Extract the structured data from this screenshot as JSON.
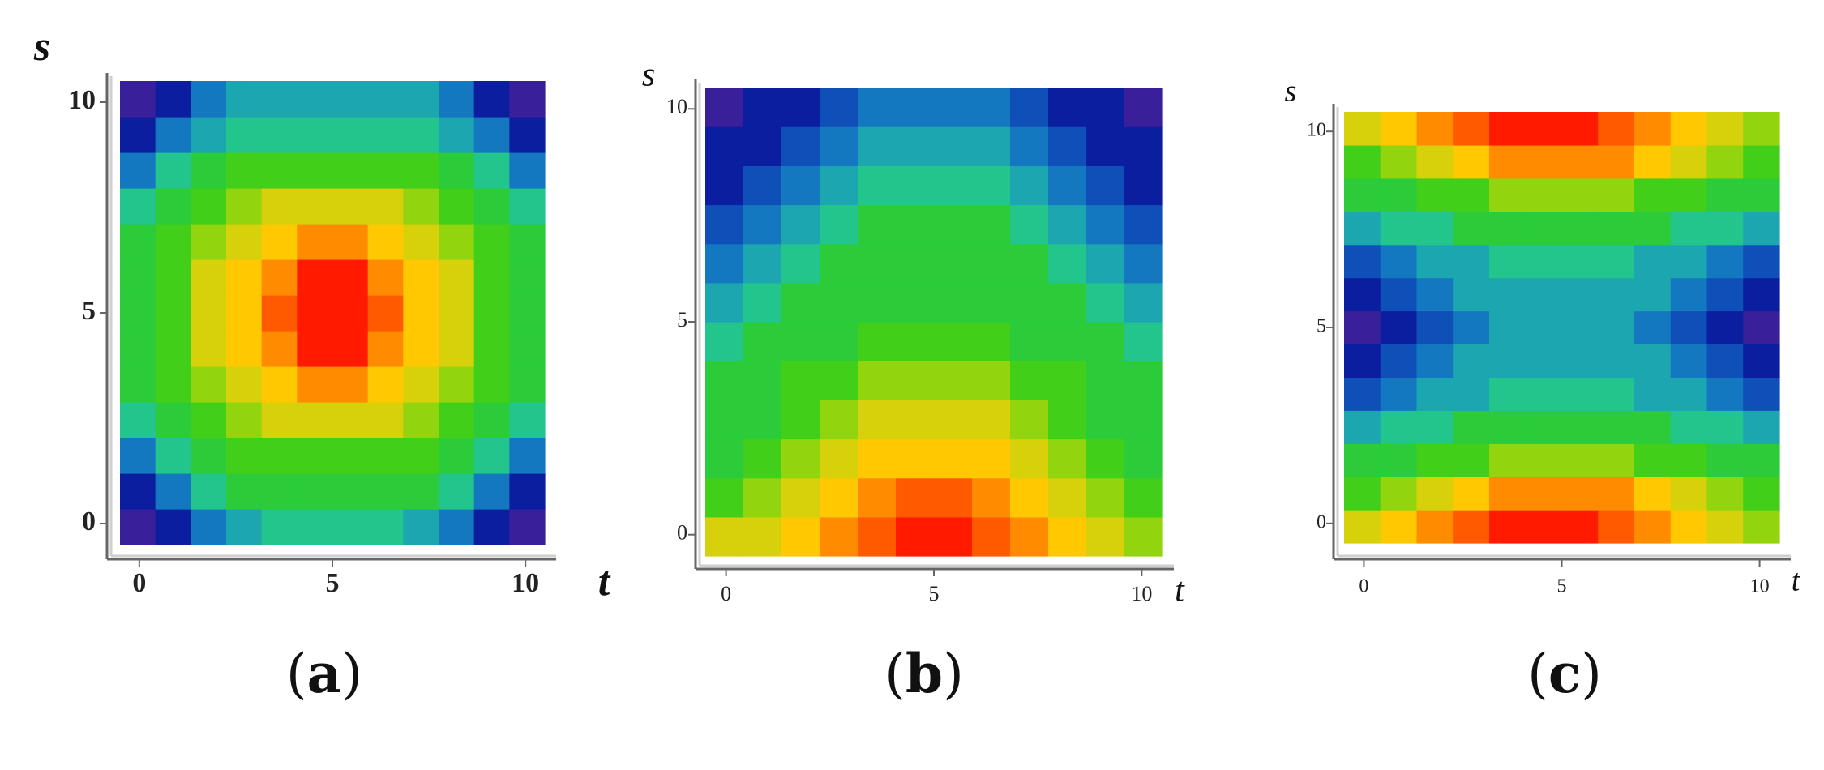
{
  "chart_data": [
    {
      "type": "heatmap",
      "panel_label": "a",
      "xlabel": "t",
      "ylabel": "s",
      "xticks": [
        "0",
        "5",
        "10"
      ],
      "yticks": [
        "0",
        "5",
        "10"
      ],
      "xlim": [
        -0.5,
        10.5
      ],
      "ylim": [
        -0.5,
        10.5
      ],
      "colormap": [
        "#3a1f9a",
        "#0b1ea0",
        "#0f4fb8",
        "#1478c0",
        "#1ca6b0",
        "#22c58c",
        "#2bcb3a",
        "#42cf1a",
        "#92d40e",
        "#d6d10a",
        "#ffc800",
        "#ff8c00",
        "#ff5a00",
        "#ff1a00"
      ],
      "levels": [
        [
          0,
          1,
          3,
          4,
          5,
          5,
          5,
          5,
          4,
          3,
          1,
          0
        ],
        [
          1,
          3,
          5,
          6,
          6,
          6,
          6,
          6,
          6,
          5,
          3,
          1
        ],
        [
          3,
          5,
          6,
          7,
          7,
          7,
          7,
          7,
          7,
          6,
          5,
          3
        ],
        [
          5,
          6,
          7,
          8,
          9,
          9,
          9,
          9,
          8,
          7,
          6,
          5
        ],
        [
          6,
          7,
          8,
          9,
          10,
          11,
          11,
          10,
          9,
          8,
          7,
          6
        ],
        [
          6,
          7,
          9,
          10,
          11,
          13,
          13,
          11,
          10,
          9,
          7,
          6
        ],
        [
          6,
          7,
          9,
          10,
          12,
          13,
          13,
          12,
          10,
          9,
          7,
          6
        ],
        [
          6,
          7,
          9,
          10,
          11,
          13,
          13,
          11,
          10,
          9,
          7,
          6
        ],
        [
          6,
          7,
          8,
          9,
          10,
          11,
          11,
          10,
          9,
          8,
          7,
          6
        ],
        [
          5,
          6,
          7,
          8,
          9,
          9,
          9,
          9,
          8,
          7,
          6,
          5
        ],
        [
          3,
          5,
          6,
          7,
          7,
          7,
          7,
          7,
          7,
          6,
          5,
          3
        ],
        [
          1,
          3,
          4,
          5,
          5,
          5,
          5,
          5,
          5,
          4,
          3,
          1
        ],
        [
          0,
          1,
          3,
          4,
          4,
          4,
          4,
          4,
          4,
          3,
          1,
          0
        ]
      ]
    },
    {
      "type": "heatmap",
      "panel_label": "b",
      "xlabel": "t",
      "ylabel": "s",
      "xticks": [
        "0",
        "5",
        "10"
      ],
      "yticks": [
        "0",
        "5",
        "10"
      ],
      "xlim": [
        -0.5,
        10.5
      ],
      "ylim": [
        -0.5,
        10.5
      ],
      "colormap": [
        "#3a1f9a",
        "#0b1ea0",
        "#0f4fb8",
        "#1478c0",
        "#1ca6b0",
        "#22c58c",
        "#2bcb3a",
        "#42cf1a",
        "#92d40e",
        "#d6d10a",
        "#ffc800",
        "#ff8c00",
        "#ff5a00",
        "#ff1a00"
      ],
      "levels": [
        [
          9,
          9,
          10,
          11,
          12,
          13,
          13,
          12,
          11,
          10,
          9,
          8
        ],
        [
          7,
          8,
          9,
          10,
          11,
          12,
          12,
          11,
          10,
          9,
          8,
          7
        ],
        [
          6,
          7,
          8,
          9,
          10,
          10,
          10,
          10,
          9,
          8,
          7,
          6
        ],
        [
          6,
          6,
          7,
          8,
          9,
          9,
          9,
          9,
          8,
          7,
          6,
          6
        ],
        [
          6,
          6,
          7,
          7,
          8,
          8,
          8,
          8,
          7,
          7,
          6,
          6
        ],
        [
          5,
          6,
          6,
          6,
          7,
          7,
          7,
          7,
          6,
          6,
          6,
          5
        ],
        [
          4,
          5,
          6,
          6,
          6,
          6,
          6,
          6,
          6,
          6,
          5,
          4
        ],
        [
          3,
          4,
          5,
          6,
          6,
          6,
          6,
          6,
          6,
          5,
          4,
          3
        ],
        [
          2,
          3,
          4,
          5,
          6,
          6,
          6,
          6,
          5,
          4,
          3,
          2
        ],
        [
          1,
          2,
          3,
          4,
          5,
          5,
          5,
          5,
          4,
          3,
          2,
          1
        ],
        [
          1,
          1,
          2,
          3,
          4,
          4,
          4,
          4,
          3,
          2,
          1,
          1
        ],
        [
          0,
          1,
          1,
          2,
          3,
          3,
          3,
          3,
          2,
          1,
          1,
          0
        ]
      ]
    },
    {
      "type": "heatmap",
      "panel_label": "c",
      "xlabel": "t",
      "ylabel": "s",
      "xticks": [
        "0",
        "5",
        "10"
      ],
      "yticks": [
        "0",
        "5",
        "10"
      ],
      "xlim": [
        -0.5,
        10.5
      ],
      "ylim": [
        -0.5,
        10.5
      ],
      "colormap": [
        "#3a1f9a",
        "#0b1ea0",
        "#0f4fb8",
        "#1478c0",
        "#1ca6b0",
        "#22c58c",
        "#2bcb3a",
        "#42cf1a",
        "#92d40e",
        "#d6d10a",
        "#ffc800",
        "#ff8c00",
        "#ff5a00",
        "#ff1a00"
      ],
      "levels": [
        [
          9,
          10,
          11,
          12,
          13,
          13,
          13,
          12,
          11,
          10,
          9,
          8
        ],
        [
          7,
          8,
          9,
          10,
          11,
          11,
          11,
          11,
          10,
          9,
          8,
          7
        ],
        [
          6,
          6,
          7,
          7,
          8,
          8,
          8,
          8,
          7,
          7,
          6,
          6
        ],
        [
          4,
          5,
          5,
          6,
          6,
          6,
          6,
          6,
          6,
          5,
          5,
          4
        ],
        [
          2,
          3,
          4,
          4,
          5,
          5,
          5,
          5,
          4,
          4,
          3,
          2
        ],
        [
          1,
          2,
          3,
          4,
          4,
          4,
          4,
          4,
          4,
          3,
          2,
          1
        ],
        [
          0,
          1,
          2,
          3,
          4,
          4,
          4,
          4,
          3,
          2,
          1,
          0
        ],
        [
          1,
          2,
          3,
          4,
          4,
          4,
          4,
          4,
          4,
          3,
          2,
          1
        ],
        [
          2,
          3,
          4,
          4,
          5,
          5,
          5,
          5,
          4,
          4,
          3,
          2
        ],
        [
          4,
          5,
          5,
          6,
          6,
          6,
          6,
          6,
          6,
          5,
          5,
          4
        ],
        [
          6,
          6,
          7,
          7,
          8,
          8,
          8,
          8,
          7,
          7,
          6,
          6
        ],
        [
          7,
          8,
          9,
          10,
          11,
          11,
          11,
          11,
          10,
          9,
          8,
          7
        ],
        [
          9,
          10,
          11,
          12,
          13,
          13,
          13,
          12,
          11,
          10,
          9,
          8
        ]
      ]
    }
  ]
}
